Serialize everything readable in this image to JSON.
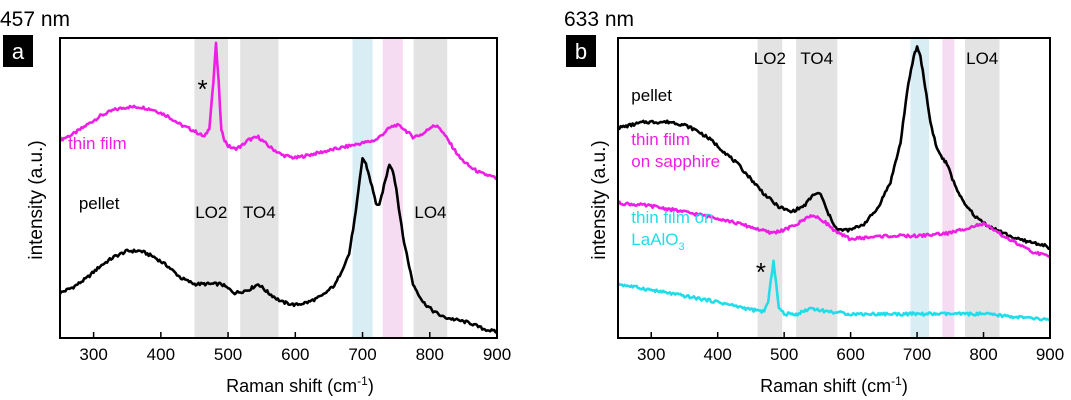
{
  "chart_data": [
    {
      "type": "line",
      "wavelength_title": "457 nm",
      "panel_letter": "a",
      "xlabel": "Raman shift (cm",
      "xlabel_sup": "-1",
      "xlabel_end": ")",
      "ylabel": "intensity (a.u.)",
      "xlim": [
        250,
        900
      ],
      "ylim": [
        0,
        100
      ],
      "xticks": [
        300,
        400,
        500,
        600,
        700,
        800,
        900
      ],
      "bands": [
        {
          "label": "LO2",
          "x0": 450,
          "x1": 500,
          "color": "#e3e3e3"
        },
        {
          "label": "TO4",
          "x0": 518,
          "x1": 575,
          "color": "#e3e3e3"
        },
        {
          "label": "",
          "x0": 685,
          "x1": 715,
          "color": "#d9edf5"
        },
        {
          "label": "",
          "x0": 730,
          "x1": 760,
          "color": "#f6dcf3"
        },
        {
          "label": "LO4",
          "x0": 776,
          "x1": 826,
          "color": "#e3e3e3"
        }
      ],
      "annotations": [
        {
          "text": "*",
          "x": 462,
          "y": 80
        }
      ],
      "series": [
        {
          "name": "thin film",
          "label_x": 262,
          "label_y": 63,
          "color": "#ee1ee6",
          "x": [
            250,
            270,
            290,
            310,
            330,
            350,
            370,
            390,
            410,
            430,
            450,
            465,
            472,
            478,
            482,
            486,
            490,
            495,
            500,
            510,
            520,
            530,
            545,
            560,
            580,
            600,
            620,
            640,
            660,
            680,
            700,
            720,
            740,
            750,
            760,
            775,
            790,
            805,
            815,
            830,
            845,
            860,
            875,
            890,
            900
          ],
          "y": [
            66,
            68,
            71,
            74,
            76,
            77,
            77,
            76,
            74,
            71,
            69,
            67,
            70,
            85,
            98,
            85,
            69,
            66,
            64,
            63,
            64,
            66,
            67,
            64,
            61,
            60,
            61,
            62,
            63,
            64,
            65,
            66,
            70,
            71,
            70,
            67,
            68,
            71,
            70,
            65,
            60,
            57,
            55,
            54,
            53
          ]
        },
        {
          "name": "pellet",
          "label_x": 278,
          "label_y": 43,
          "color": "#000000",
          "x": [
            250,
            270,
            290,
            310,
            330,
            350,
            370,
            390,
            410,
            430,
            450,
            470,
            490,
            510,
            530,
            545,
            560,
            580,
            600,
            620,
            640,
            660,
            680,
            690,
            700,
            705,
            710,
            720,
            725,
            730,
            740,
            745,
            750,
            760,
            775,
            790,
            805,
            820,
            840,
            860,
            880,
            900
          ],
          "y": [
            15,
            17,
            20,
            24,
            27,
            29,
            29,
            27,
            24,
            20,
            18,
            18,
            18,
            15,
            16,
            18,
            15,
            12,
            11,
            12,
            14,
            18,
            28,
            42,
            60,
            58,
            54,
            45,
            44,
            49,
            58,
            56,
            50,
            34,
            18,
            12,
            9,
            7,
            6,
            5,
            3,
            2
          ]
        }
      ]
    },
    {
      "type": "line",
      "wavelength_title": "633 nm",
      "panel_letter": "b",
      "xlabel": "Raman shift (cm",
      "xlabel_sup": "-1",
      "xlabel_end": ")",
      "ylabel": "intensity (a.u.)",
      "xlim": [
        250,
        900
      ],
      "ylim": [
        0,
        100
      ],
      "xticks": [
        300,
        400,
        500,
        600,
        700,
        800,
        900
      ],
      "bands": [
        {
          "label": "LO2",
          "x0": 460,
          "x1": 497,
          "color": "#e3e3e3"
        },
        {
          "label": "TO4",
          "x0": 518,
          "x1": 580,
          "color": "#e3e3e3"
        },
        {
          "label": "",
          "x0": 690,
          "x1": 718,
          "color": "#d9edf5"
        },
        {
          "label": "",
          "x0": 738,
          "x1": 756,
          "color": "#f6dcf3"
        },
        {
          "label": "LO4",
          "x0": 772,
          "x1": 824,
          "color": "#e3e3e3"
        }
      ],
      "annotations": [
        {
          "text": "*",
          "x": 465,
          "y": 19
        }
      ],
      "series": [
        {
          "name": "pellet",
          "label_lines": [
            "pellet"
          ],
          "label_x": 270,
          "label_y": 79,
          "color": "#000000",
          "x": [
            250,
            270,
            290,
            310,
            330,
            350,
            370,
            390,
            410,
            430,
            450,
            470,
            490,
            510,
            530,
            545,
            555,
            565,
            580,
            600,
            620,
            640,
            660,
            675,
            685,
            695,
            700,
            705,
            712,
            720,
            730,
            738,
            745,
            755,
            770,
            790,
            810,
            830,
            850,
            870,
            890,
            900
          ],
          "y": [
            70,
            71,
            72,
            72,
            72,
            71,
            69,
            66,
            62,
            58,
            53,
            48,
            44,
            42,
            44,
            48,
            48,
            42,
            36,
            36,
            38,
            43,
            52,
            65,
            82,
            94,
            97,
            94,
            84,
            72,
            63,
            60,
            58,
            52,
            45,
            40,
            37,
            35,
            33,
            32,
            31,
            30
          ]
        },
        {
          "name": "thin film on sapphire",
          "label_lines": [
            "thin film",
            "on sapphire"
          ],
          "label_x": 270,
          "label_y": 57,
          "color": "#ee1ee6",
          "x": [
            250,
            300,
            350,
            400,
            450,
            480,
            500,
            520,
            540,
            560,
            580,
            600,
            650,
            700,
            750,
            780,
            800,
            830,
            870,
            900
          ],
          "y": [
            45,
            44,
            42,
            40,
            37,
            35,
            36,
            38,
            41,
            39,
            35,
            33,
            34,
            34,
            35,
            37,
            38,
            34,
            29,
            27
          ]
        },
        {
          "name": "thin film on LaAlO3",
          "label_lines": [
            "thin film on",
            "LaAlO"
          ],
          "label_sub": "3",
          "label_x": 270,
          "label_y": 31,
          "color": "#21dde9",
          "x": [
            250,
            300,
            350,
            400,
            440,
            460,
            470,
            476,
            480,
            484,
            488,
            492,
            500,
            520,
            540,
            560,
            600,
            650,
            700,
            750,
            800,
            850,
            900
          ],
          "y": [
            18,
            16,
            14,
            12,
            10,
            9,
            9,
            12,
            19,
            26,
            18,
            10,
            8,
            8,
            10,
            9,
            8,
            8,
            8,
            8,
            8,
            7,
            6
          ]
        }
      ]
    }
  ]
}
